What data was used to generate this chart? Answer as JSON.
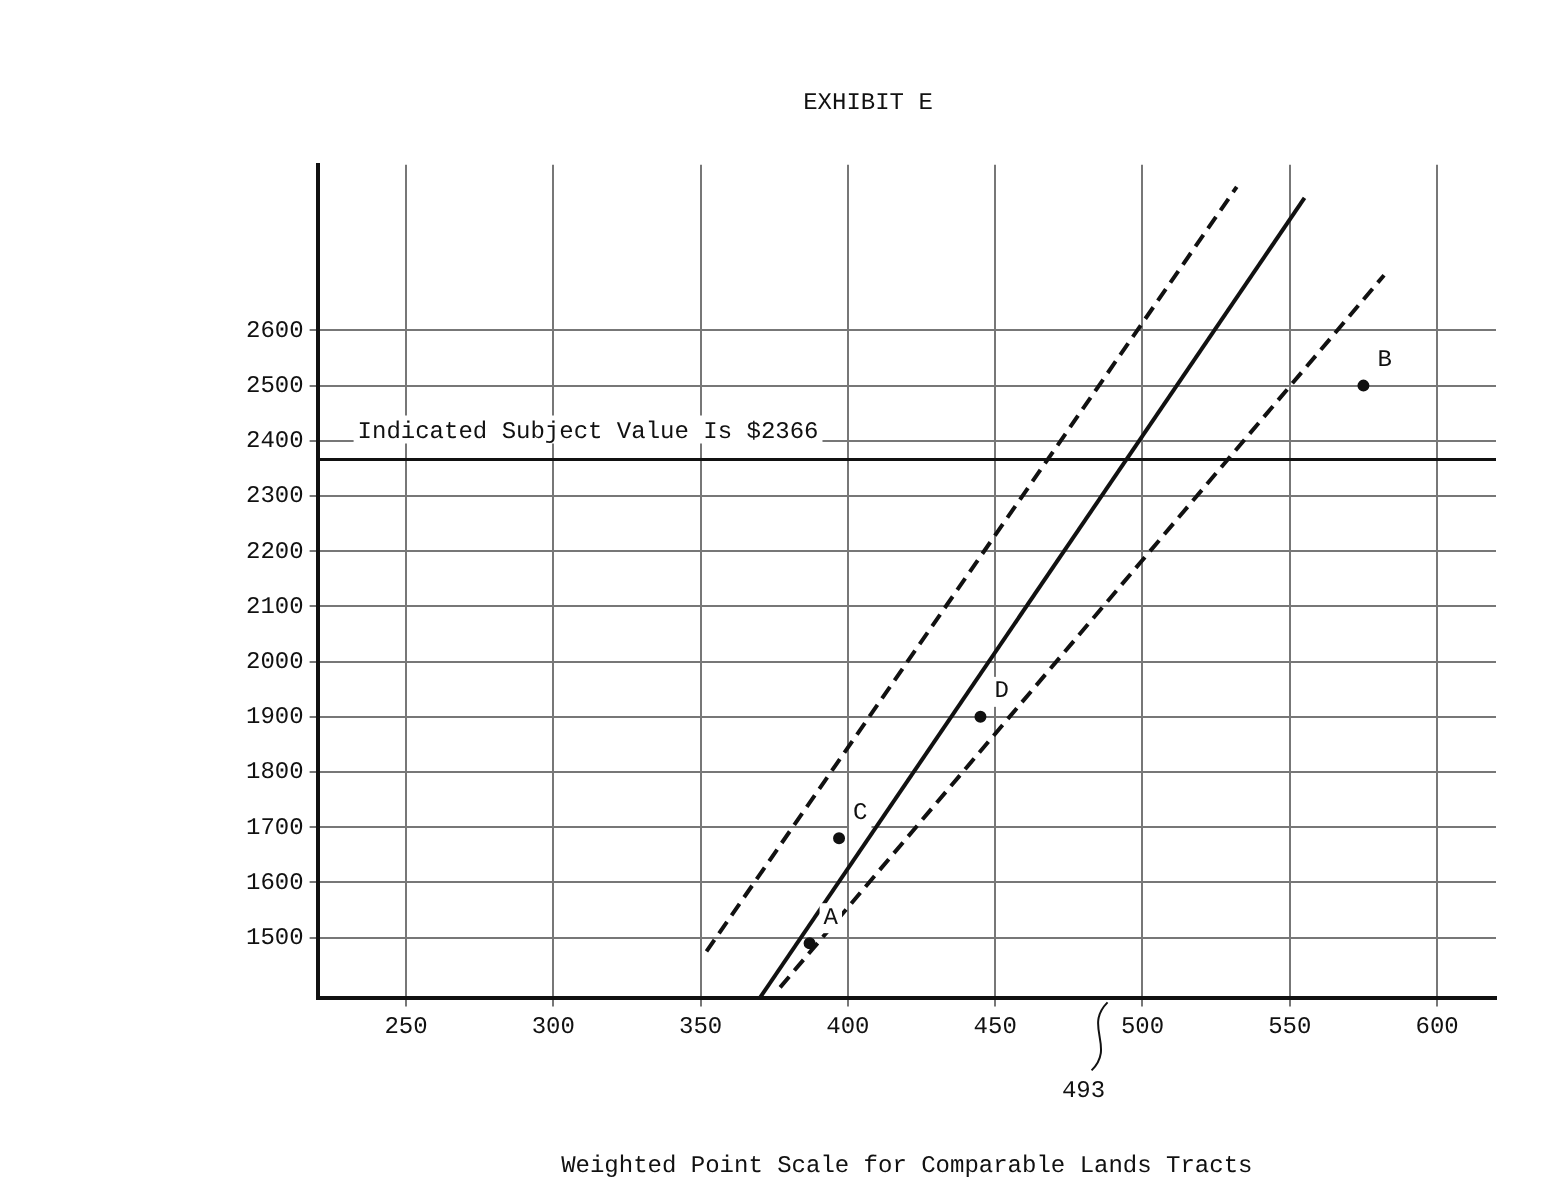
{
  "chart_data": {
    "type": "scatter",
    "title": "EXHIBIT E",
    "xlabel": "Weighted Point Scale for Comparable Lands Tracts",
    "series": [
      {
        "type": "scatter",
        "color": "#111111",
        "marker": "circle",
        "x": [
          387,
          575,
          397,
          445
        ],
        "values": [
          1490,
          2500,
          1680,
          1900
        ]
      },
      {
        "type": "line",
        "color": "#111111",
        "line_style": "solid",
        "marker": "none",
        "x": [
          370,
          555
        ],
        "values": [
          1390,
          2840
        ]
      },
      {
        "type": "line",
        "color": "#111111",
        "line_style": "dashed",
        "marker": "none",
        "x": [
          352,
          532
        ],
        "values": [
          1475,
          2860
        ]
      },
      {
        "type": "line",
        "color": "#111111",
        "line_style": "dashed",
        "marker": "none",
        "x": [
          377,
          582
        ],
        "values": [
          1410,
          2700
        ]
      }
    ],
    "xlim": [
      220,
      620
    ],
    "ylim": [
      1390,
      2900
    ],
    "xticks": [
      250,
      300,
      350,
      400,
      450,
      500,
      550,
      600
    ],
    "yticks": [
      1500,
      1600,
      1700,
      1800,
      1900,
      2000,
      2100,
      2200,
      2300,
      2400,
      2500,
      2600
    ],
    "grid": true,
    "ref_lines": [
      {
        "axis": "y",
        "value": 2366,
        "label": "Indicated Subject Value Is $2366",
        "color": "#111111"
      }
    ],
    "annotations": [
      {
        "text": "A",
        "x": 387,
        "y": 1490
      },
      {
        "text": "B",
        "x": 575,
        "y": 2500
      },
      {
        "text": "C",
        "x": 397,
        "y": 1680
      },
      {
        "text": "D",
        "x": 445,
        "y": 1900
      },
      "493"
    ]
  }
}
